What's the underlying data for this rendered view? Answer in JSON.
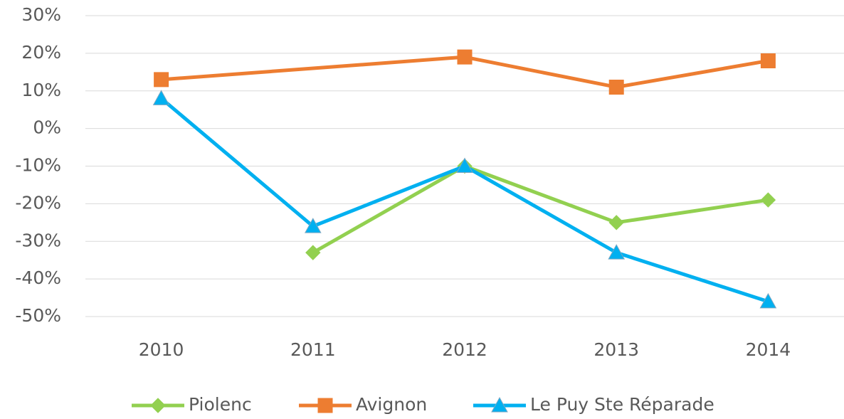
{
  "chart_data": {
    "type": "line",
    "categories": [
      "2010",
      "2011",
      "2012",
      "2013",
      "2014"
    ],
    "series": [
      {
        "name": "Piolenc",
        "color": "#92d050",
        "marker": "diamond",
        "values": [
          null,
          -33,
          -10,
          -25,
          -19
        ]
      },
      {
        "name": "Avignon",
        "color": "#ed7d31",
        "marker": "square",
        "values": [
          13,
          null,
          19,
          11,
          18
        ]
      },
      {
        "name": "Le Puy Ste Réparade",
        "color": "#00b0f0",
        "marker": "triangle",
        "values": [
          8,
          -26,
          -10,
          -33,
          -46
        ]
      }
    ],
    "ylim": [
      -50,
      30
    ],
    "yticks": [
      {
        "value": -50,
        "label": "-50%"
      },
      {
        "value": -40,
        "label": "-40%"
      },
      {
        "value": -30,
        "label": "-30%"
      },
      {
        "value": -20,
        "label": "-20%"
      },
      {
        "value": -10,
        "label": "-10%"
      },
      {
        "value": 0,
        "label": "0%"
      },
      {
        "value": 10,
        "label": "10%"
      },
      {
        "value": 20,
        "label": "20%"
      },
      {
        "value": 30,
        "label": "30%"
      }
    ],
    "grid": true,
    "legend": "bottom"
  }
}
